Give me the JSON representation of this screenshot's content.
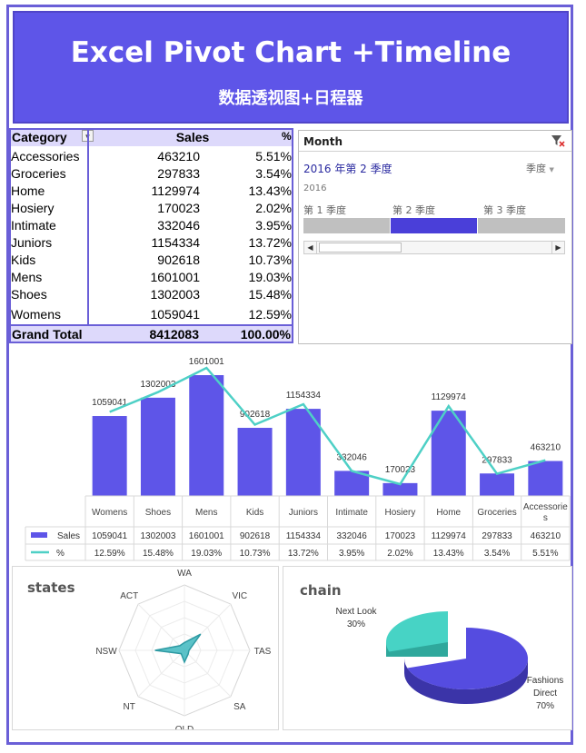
{
  "header": {
    "title": "Excel Pivot Chart +Timeline",
    "subtitle": "数据透视图+日程器"
  },
  "pivot": {
    "col_category": "Category",
    "col_sales": "Sales",
    "col_pct": "%",
    "rows": [
      {
        "category": "Accessories",
        "sales": "463210",
        "pct": "5.51%"
      },
      {
        "category": "Groceries",
        "sales": "297833",
        "pct": "3.54%"
      },
      {
        "category": "Home",
        "sales": "1129974",
        "pct": "13.43%"
      },
      {
        "category": "Hosiery",
        "sales": "170023",
        "pct": "2.02%"
      },
      {
        "category": "Intimate",
        "sales": "332046",
        "pct": "3.95%"
      },
      {
        "category": "Juniors",
        "sales": "1154334",
        "pct": "13.72%"
      },
      {
        "category": "Kids",
        "sales": "902618",
        "pct": "10.73%"
      },
      {
        "category": "Mens",
        "sales": "1601001",
        "pct": "19.03%"
      },
      {
        "category": "Shoes",
        "sales": "1302003",
        "pct": "15.48%"
      },
      {
        "category": "Womens",
        "sales": "1059041",
        "pct": "12.59%"
      }
    ],
    "total": {
      "label": "Grand Total",
      "sales": "8412083",
      "pct": "100.00%"
    }
  },
  "timeline": {
    "title": "Month",
    "selection": "2016 年第 2 季度",
    "level": "季度",
    "year": "2016",
    "quarters": [
      "第 1 季度",
      "第 2 季度",
      "第 3 季度"
    ],
    "selected_quarter_index": 1,
    "colors": {
      "selected": "#4a3fd9",
      "unselected": "#c0c0c0"
    }
  },
  "chart_data": [
    {
      "type": "bar",
      "categories": [
        "Womens",
        "Shoes",
        "Mens",
        "Kids",
        "Juniors",
        "Intimate",
        "Hosiery",
        "Home",
        "Groceries",
        "Accessories"
      ],
      "series": [
        {
          "name": "Sales",
          "type": "bar",
          "color": "#5e55e8",
          "values": [
            1059041,
            1302003,
            1601001,
            902618,
            1154334,
            332046,
            170023,
            1129974,
            297833,
            463210
          ],
          "labels": [
            "1059041",
            "1302003",
            "1601001",
            "902618",
            "1154334",
            "332046",
            "170023",
            "1129974",
            "297833",
            "463210"
          ]
        },
        {
          "name": "%",
          "type": "line",
          "color": "#4ed0c6",
          "values": [
            12.59,
            15.48,
            19.03,
            10.73,
            13.72,
            3.95,
            2.02,
            13.43,
            3.54,
            5.51
          ],
          "labels": [
            "12.59%",
            "15.48%",
            "19.03%",
            "10.73%",
            "13.72%",
            "3.95%",
            "2.02%",
            "13.43%",
            "3.54%",
            "5.51%"
          ]
        }
      ],
      "data_table": true
    },
    {
      "type": "radar",
      "title": "states",
      "axes": [
        "WA",
        "VIC",
        "TAS",
        "SA",
        "QLD",
        "NT",
        "NSW",
        "ACT"
      ],
      "relative_values": [
        0.12,
        0.35,
        0.07,
        0.08,
        0.18,
        0.07,
        0.45,
        0.1
      ],
      "color": "#3fb8c0"
    },
    {
      "type": "pie",
      "title": "chain",
      "slices": [
        {
          "name": "Next Look",
          "value": 30,
          "label": "30%",
          "color": "#47d3c5"
        },
        {
          "name": "Fashions Direct",
          "value": 70,
          "label": "70%",
          "color": "#554ce0"
        }
      ]
    }
  ]
}
